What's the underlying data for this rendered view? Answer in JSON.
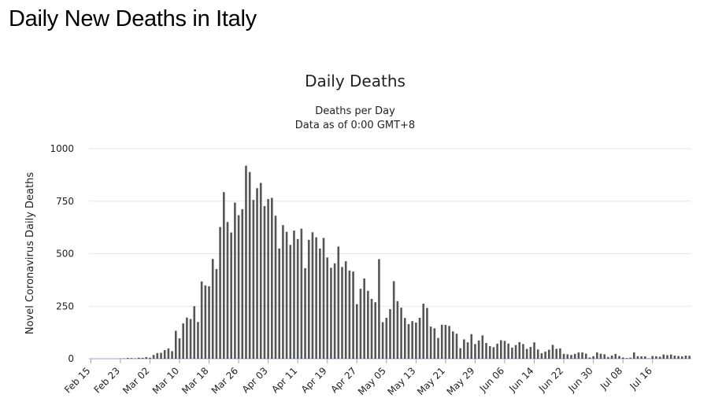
{
  "page": {
    "heading": "Daily New Deaths in Italy"
  },
  "chart_data": {
    "type": "bar",
    "title": "Daily Deaths",
    "subtitle_lines": [
      "Deaths per Day",
      "Data as of 0:00 GMT+8"
    ],
    "ylabel": "Novel Coronavirus Daily Deaths",
    "xlabel": "",
    "ylim": [
      0,
      1000
    ],
    "yticks": [
      0,
      250,
      500,
      750,
      1000
    ],
    "x_tick_labels": [
      "Feb 15",
      "Feb 23",
      "Mar 02",
      "Mar 10",
      "Mar 18",
      "Mar 26",
      "Apr 03",
      "Apr 11",
      "Apr 19",
      "Apr 27",
      "May 05",
      "May 13",
      "May 21",
      "May 29",
      "Jun 06",
      "Jun 14",
      "Jun 22",
      "Jun 30",
      "Jul 08",
      "Jul 16"
    ],
    "x_tick_every_n_days": 8,
    "start_date": "Feb 15",
    "grid": true,
    "bar_color": "#555555",
    "grid_color": "#e6e6e6",
    "values": [
      0,
      0,
      0,
      0,
      0,
      0,
      0,
      0,
      1,
      2,
      4,
      3,
      2,
      5,
      4,
      8,
      5,
      18,
      27,
      28,
      41,
      49,
      36,
      133,
      97,
      168,
      196,
      189,
      250,
      175,
      368,
      349,
      345,
      475,
      427,
      627,
      793,
      651,
      601,
      743,
      683,
      712,
      919,
      889,
      756,
      812,
      837,
      727,
      760,
      766,
      681,
      525,
      636,
      604,
      542,
      610,
      570,
      619,
      431,
      566,
      602,
      578,
      525,
      575,
      482,
      433,
      454,
      534,
      437,
      464,
      420,
      415,
      260,
      333,
      382,
      323,
      285,
      269,
      474,
      174,
      195,
      236,
      369,
      274,
      243,
      194,
      165,
      179,
      172,
      195,
      262,
      242,
      153,
      145,
      99,
      162,
      161,
      156,
      130,
      119,
      50,
      92,
      78,
      117,
      70,
      87,
      111,
      75,
      60,
      55,
      71,
      88,
      85,
      72,
      53,
      65,
      79,
      70,
      47,
      56,
      78,
      44,
      26,
      34,
      43,
      66,
      47,
      49,
      23,
      21,
      18,
      23,
      30,
      30,
      24,
      6,
      12,
      30,
      24,
      21,
      8,
      15,
      23,
      13,
      6,
      3,
      5,
      30,
      12,
      11,
      11,
      2,
      13,
      12,
      10,
      20,
      17,
      20,
      15,
      13,
      11,
      15,
      14
    ]
  }
}
